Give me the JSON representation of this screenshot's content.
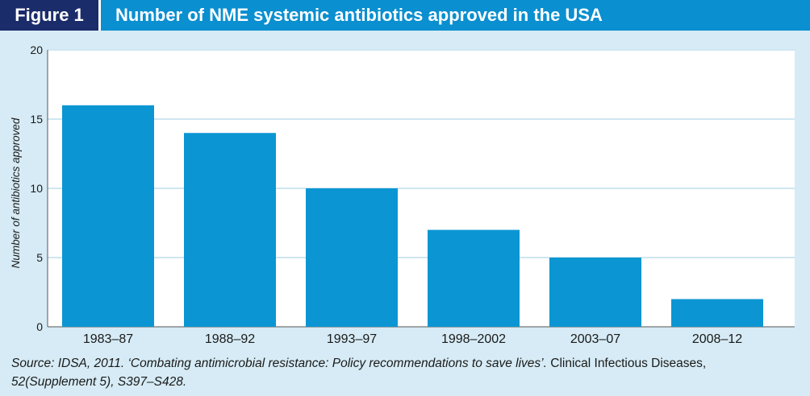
{
  "figure": {
    "label": "Figure 1",
    "title": "Number of NME systemic antibiotics approved in the USA"
  },
  "chart_data": {
    "type": "bar",
    "categories": [
      "1983–87",
      "1988–92",
      "1993–97",
      "1998–2002",
      "2003–07",
      "2008–12"
    ],
    "values": [
      16,
      14,
      10,
      7,
      5,
      2
    ],
    "title": "Number of NME systemic antibiotics approved in the USA",
    "xlabel": "",
    "ylabel": "Number of antibiotics approved",
    "ylim": [
      0,
      20
    ],
    "yticks": [
      0,
      5,
      10,
      15,
      20
    ],
    "grid": true,
    "bar_color": "#0b96d3"
  },
  "source": {
    "part1": "Source: IDSA, 2011. ‘Combating antimicrobial resistance: Policy recommendations to save lives’.",
    "part2": " Clinical Infectious Diseases,",
    "part3": "52(Supplement 5), S397–S428."
  }
}
